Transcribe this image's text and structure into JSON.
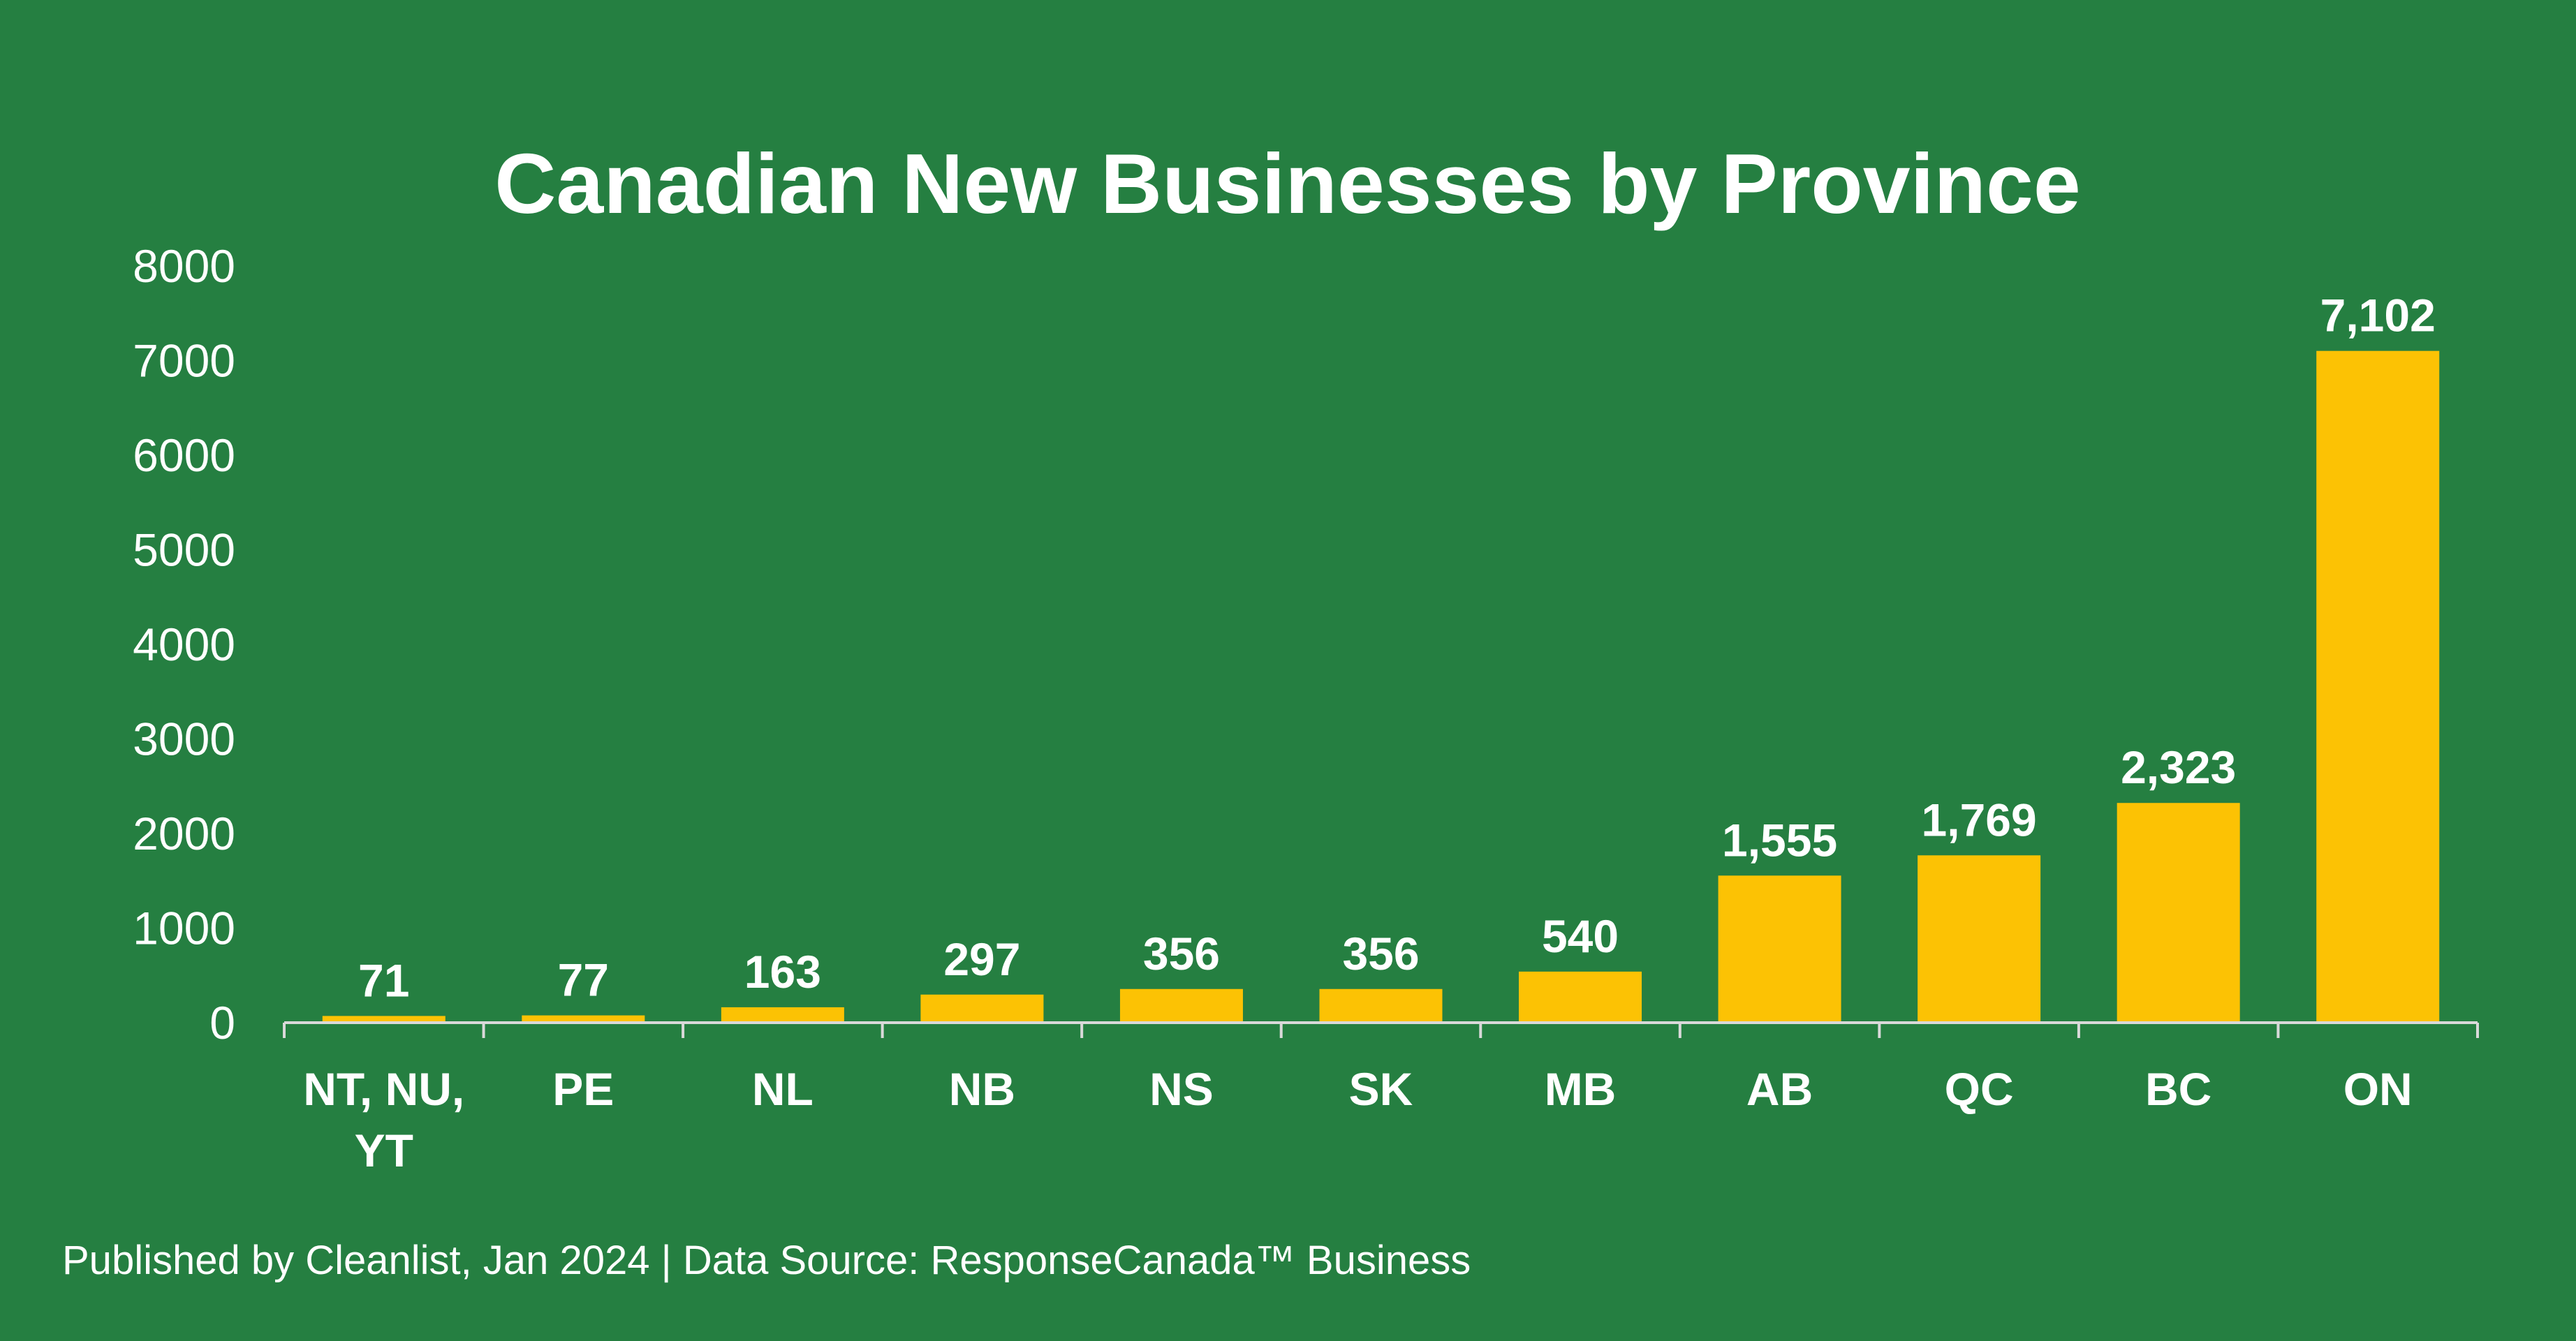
{
  "colors": {
    "background": "#257f41",
    "bar": "#fcc204",
    "axis": "#d9d9d9",
    "text": "#ffffff"
  },
  "footer": "Published by Cleanlist, Jan 2024 | Data Source: ResponseCanada™ Business",
  "chart_data": {
    "type": "bar",
    "title": "Canadian New Businesses by Province",
    "xlabel": "",
    "ylabel": "",
    "ylim": [
      0,
      8000
    ],
    "yticks": [
      "0",
      "1000",
      "2000",
      "3000",
      "4000",
      "5000",
      "6000",
      "7000",
      "8000"
    ],
    "grid": false,
    "categories": [
      [
        "NT, NU,",
        "YT"
      ],
      [
        "PE"
      ],
      [
        "NL"
      ],
      [
        "NB"
      ],
      [
        "NS"
      ],
      [
        "SK"
      ],
      [
        "MB"
      ],
      [
        "AB"
      ],
      [
        "QC"
      ],
      [
        "BC"
      ],
      [
        "ON"
      ]
    ],
    "values": [
      71,
      77,
      163,
      297,
      356,
      356,
      540,
      1555,
      1769,
      2323,
      7102
    ],
    "data_labels": [
      "71",
      "77",
      "163",
      "297",
      "356",
      "356",
      "540",
      "1,555",
      "1,769",
      "2,323",
      "7,102"
    ]
  }
}
